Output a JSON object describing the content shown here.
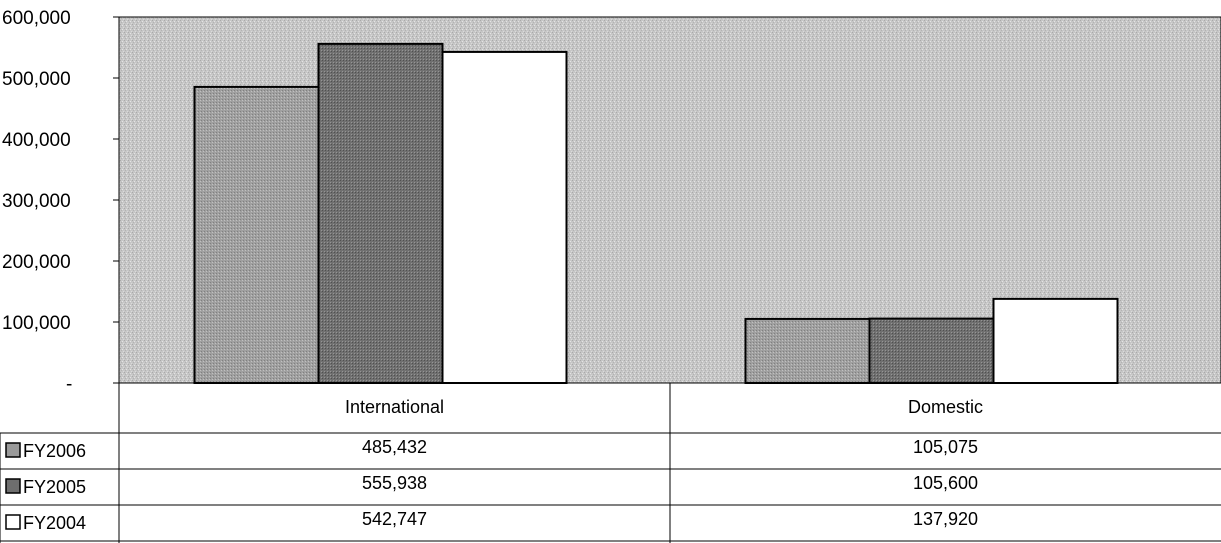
{
  "chart_data": {
    "type": "bar",
    "categories": [
      "International",
      "Domestic"
    ],
    "series": [
      {
        "name": "FY2006",
        "values": [
          485432,
          105075
        ],
        "labels": [
          "485,432",
          "105,075"
        ],
        "color": "#9a9a9a"
      },
      {
        "name": "FY2005",
        "values": [
          555938,
          105600
        ],
        "labels": [
          "555,938",
          "105,600"
        ],
        "color": "#6e6e6e"
      },
      {
        "name": "FY2004",
        "values": [
          542747,
          137920
        ],
        "labels": [
          "542,747",
          "137,920"
        ],
        "color": "#ffffff"
      }
    ],
    "ylim": [
      0,
      600000
    ],
    "yticks": [
      {
        "value": 0,
        "label": "-"
      },
      {
        "value": 100000,
        "label": "100,000"
      },
      {
        "value": 200000,
        "label": "200,000"
      },
      {
        "value": 300000,
        "label": "300,000"
      },
      {
        "value": 400000,
        "label": "400,000"
      },
      {
        "value": 500000,
        "label": "500,000"
      },
      {
        "value": 600000,
        "label": "600,000"
      }
    ],
    "plot_background": "#c8c8c8",
    "grid": false,
    "legend": "data-table-left",
    "data_table": true
  }
}
